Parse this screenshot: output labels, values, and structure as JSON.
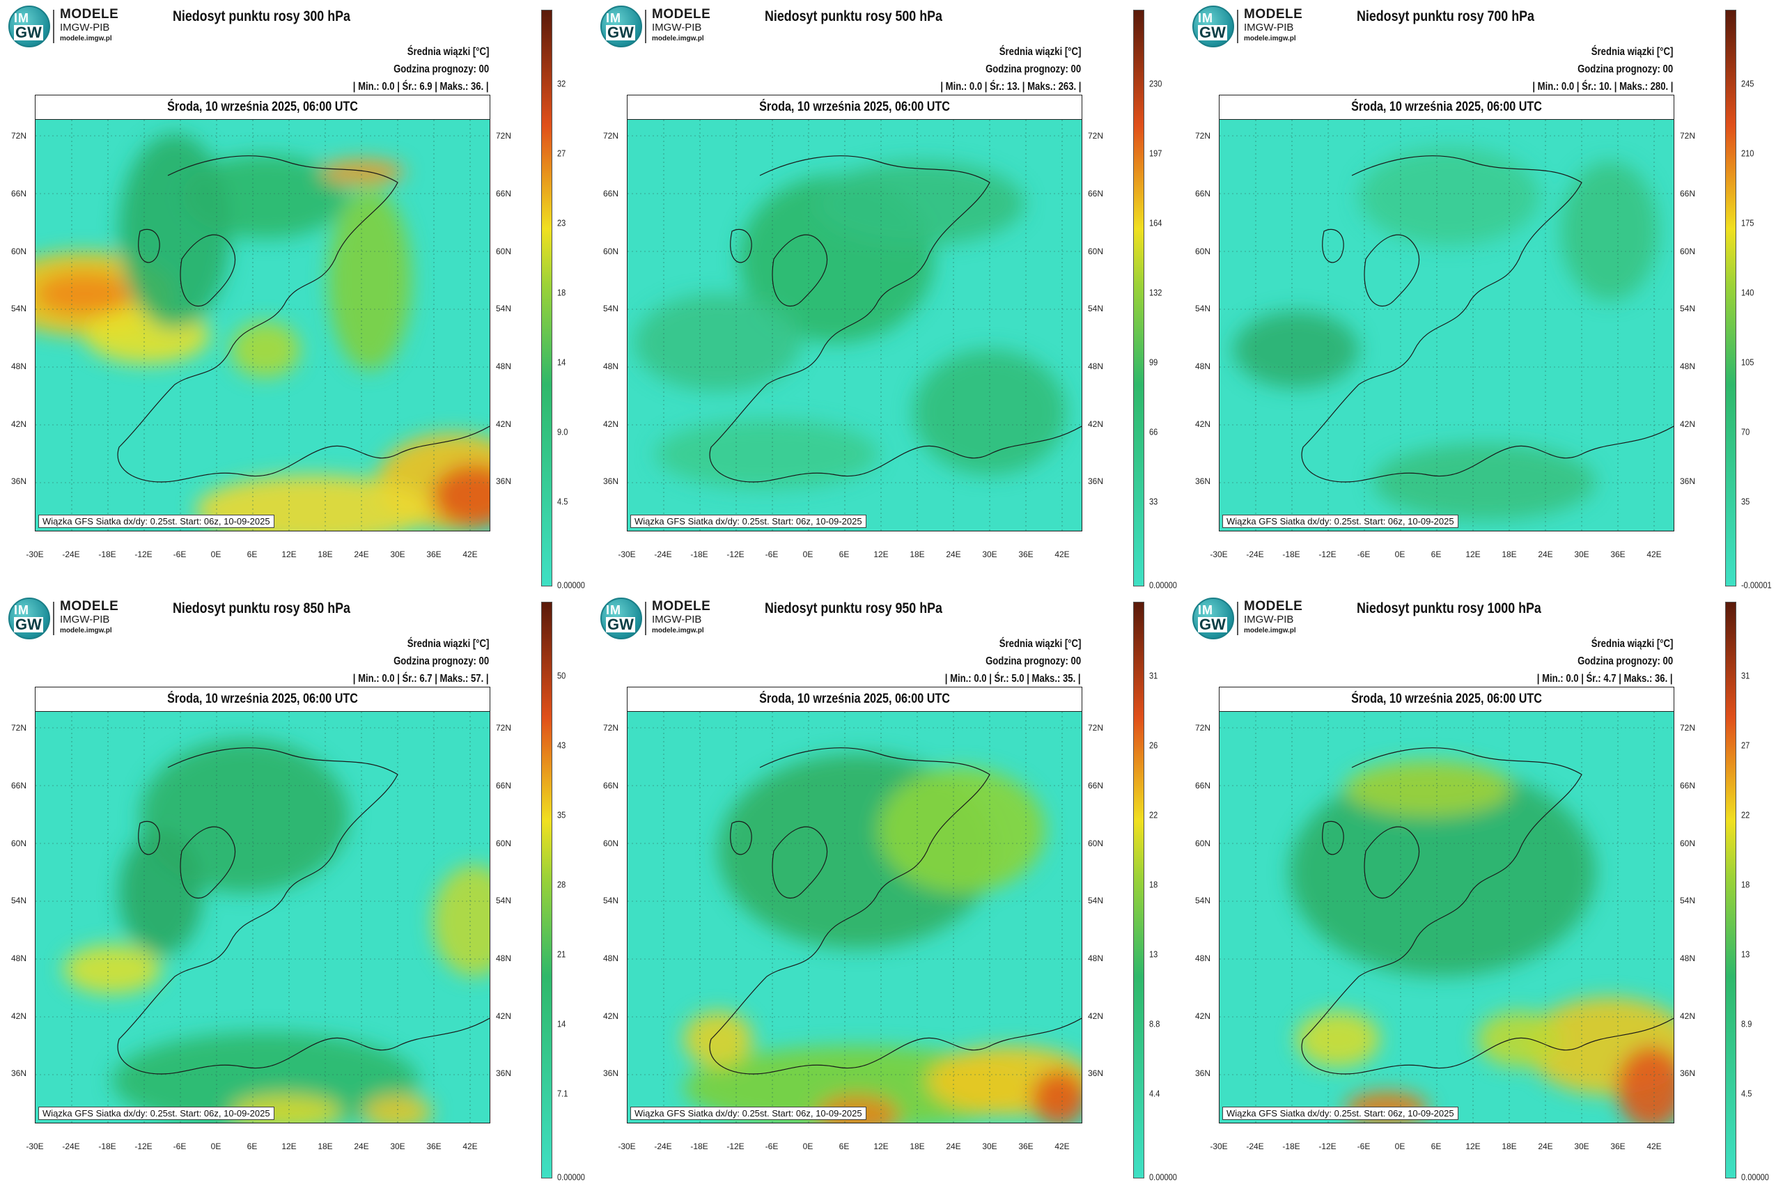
{
  "logo": {
    "line1": "MODELE",
    "line2": "IMGW-PIB",
    "line3": "modele.imgw.pl",
    "badge_top": "IM",
    "badge_bottom": "GW"
  },
  "common": {
    "avg_label": "Średnia wiązki [°C]",
    "forecast_hour": "Godzina prognozy: 00",
    "date": "Środa, 10 września 2025, 06:00 UTC",
    "footer": "Wiązka GFS Siatka dx/dy: 0.25st. Start: 06z, 10-09-2025",
    "lat_labels": [
      "72N",
      "66N",
      "60N",
      "54N",
      "48N",
      "42N",
      "36N"
    ],
    "lon_labels": [
      "-30E",
      "-24E",
      "-18E",
      "-12E",
      "-6E",
      "0E",
      "6E",
      "12E",
      "18E",
      "24E",
      "30E",
      "36E",
      "42E"
    ]
  },
  "panels": [
    {
      "title": "Niedosyt punktu rosy 300 hPa",
      "stats": "| Min.:   0.0 | Śr.:   6.9 | Maks.:   36. |",
      "colorbar": [
        "32",
        "27",
        "23",
        "18",
        "14",
        "9.0",
        "4.5",
        "0.00000"
      ]
    },
    {
      "title": "Niedosyt punktu rosy 500 hPa",
      "stats": "| Min.:   0.0 | Śr.:   13. | Maks.:   263. |",
      "colorbar": [
        "230",
        "197",
        "164",
        "132",
        "99",
        "66",
        "33",
        "0.00000"
      ]
    },
    {
      "title": "Niedosyt punktu rosy 700 hPa",
      "stats": "| Min.:   0.0 | Śr.:   10. | Maks.:   280. |",
      "colorbar": [
        "245",
        "210",
        "175",
        "140",
        "105",
        "70",
        "35",
        "-0.00001"
      ]
    },
    {
      "title": "Niedosyt punktu rosy 850 hPa",
      "stats": "| Min.:   0.0 | Śr.:   6.7 | Maks.:   57. |",
      "colorbar": [
        "50",
        "43",
        "35",
        "28",
        "21",
        "14",
        "7.1",
        "0.00000"
      ]
    },
    {
      "title": "Niedosyt punktu rosy 950 hPa",
      "stats": "| Min.:   0.0 | Śr.:   5.0 | Maks.:   35. |",
      "colorbar": [
        "31",
        "26",
        "22",
        "18",
        "13",
        "8.8",
        "4.4",
        "0.00000"
      ]
    },
    {
      "title": "Niedosyt punktu rosy 1000 hPa",
      "stats": "| Min.:   0.0 | Śr.:   4.7 | Maks.:   36. |",
      "colorbar": [
        "31",
        "27",
        "22",
        "18",
        "13",
        "8.9",
        "4.5",
        "0.00000"
      ]
    }
  ],
  "colors": {
    "low": "#3fe0c4",
    "mid": "#2fb86a",
    "high": "#f0e020",
    "max": "#e0501a",
    "top": "#5a1a0a"
  }
}
